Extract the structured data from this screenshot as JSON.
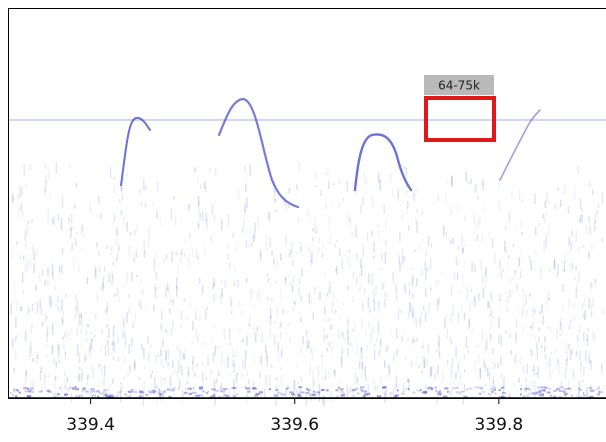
{
  "chart_data": {
    "type": "spectrogram",
    "xlim": [
      339.32,
      339.905
    ],
    "xticks": [
      339.4,
      339.6,
      339.8
    ],
    "annotations": [
      {
        "text": "64-75k"
      }
    ]
  }
}
